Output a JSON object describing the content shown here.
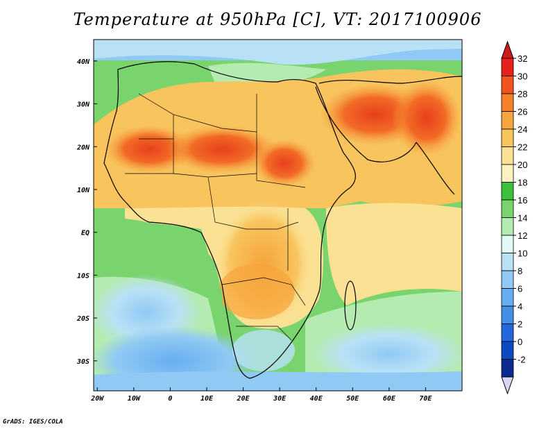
{
  "title": "Temperature at 950hPa [C], VT: 2017100906",
  "credit": "GrADS: IGES/COLA",
  "map": {
    "lon_range": [
      -21,
      80
    ],
    "lat_range": [
      -37,
      45
    ],
    "lat_ticks": [
      {
        "label": "40N",
        "value": 40
      },
      {
        "label": "30N",
        "value": 30
      },
      {
        "label": "20N",
        "value": 20
      },
      {
        "label": "10N",
        "value": 10
      },
      {
        "label": "EQ",
        "value": 0
      },
      {
        "label": "10S",
        "value": -10
      },
      {
        "label": "20S",
        "value": -20
      },
      {
        "label": "30S",
        "value": -30
      }
    ],
    "lon_ticks": [
      {
        "label": "20W",
        "value": -20
      },
      {
        "label": "10W",
        "value": -10
      },
      {
        "label": "0",
        "value": 0
      },
      {
        "label": "10E",
        "value": 10
      },
      {
        "label": "20E",
        "value": 20
      },
      {
        "label": "30E",
        "value": 30
      },
      {
        "label": "40E",
        "value": 40
      },
      {
        "label": "50E",
        "value": 50
      },
      {
        "label": "60E",
        "value": 60
      },
      {
        "label": "70E",
        "value": 70
      }
    ]
  },
  "colorbar": {
    "levels": [
      "32",
      "30",
      "28",
      "26",
      "24",
      "22",
      "20",
      "18",
      "16",
      "14",
      "12",
      "10",
      "8",
      "6",
      "4",
      "2",
      "0",
      "-2"
    ],
    "colors": [
      "#e8201c",
      "#f25420",
      "#f5822b",
      "#f6a43c",
      "#f8c45e",
      "#fbe193",
      "#fdf3be",
      "#3dbf3b",
      "#79d46d",
      "#b4ebb0",
      "#e3f9f4",
      "#b8e1f6",
      "#90c9f3",
      "#66aef0",
      "#4190e6",
      "#2168dd",
      "#0c49c2",
      "#0a2a90",
      "#06105a"
    ],
    "top_color": "#d01818",
    "bottom_color": "#d8d4f4"
  }
}
